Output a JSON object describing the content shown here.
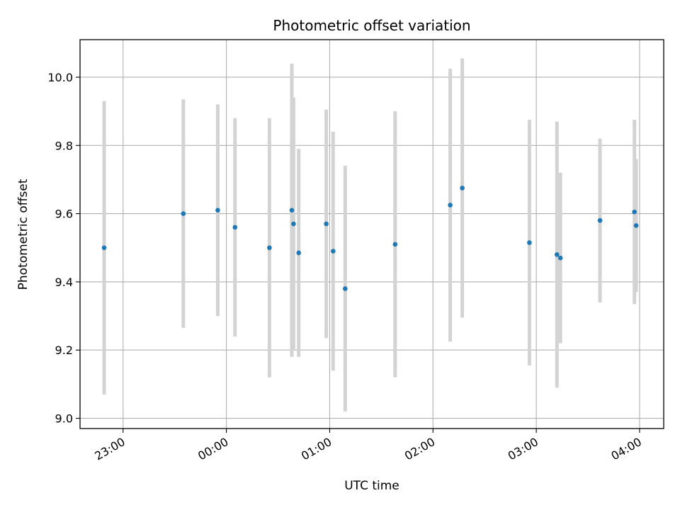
{
  "chart_data": {
    "type": "scatter",
    "title": "Photometric offset variation",
    "xlabel": "UTC time",
    "ylabel": "Photometric offset",
    "x_is_time": true,
    "xlim": [
      "22:35",
      "04:14"
    ],
    "ylim": [
      8.97,
      10.11
    ],
    "x_ticks": [
      "23:00",
      "00:00",
      "01:00",
      "02:00",
      "03:00",
      "04:00"
    ],
    "y_ticks": [
      9.0,
      9.2,
      9.4,
      9.6,
      9.8,
      10.0
    ],
    "y_tick_labels": [
      "9.0",
      "9.2",
      "9.4",
      "9.6",
      "9.8",
      "10.0"
    ],
    "grid": true,
    "colors": {
      "point": "#1f77b4",
      "errorbar": "#d3d3d3",
      "grid": "#b0b0b0"
    },
    "points": [
      {
        "x": "22:49",
        "y": 9.5,
        "err": 0.43
      },
      {
        "x": "23:35",
        "y": 9.6,
        "err": 0.335
      },
      {
        "x": "23:55",
        "y": 9.61,
        "err": 0.31
      },
      {
        "x": "00:05",
        "y": 9.56,
        "err": 0.32
      },
      {
        "x": "00:25",
        "y": 9.5,
        "err": 0.38
      },
      {
        "x": "00:38",
        "y": 9.61,
        "err": 0.43
      },
      {
        "x": "00:39",
        "y": 9.57,
        "err": 0.37
      },
      {
        "x": "00:42",
        "y": 9.485,
        "err": 0.305
      },
      {
        "x": "00:58",
        "y": 9.57,
        "err": 0.335
      },
      {
        "x": "01:02",
        "y": 9.49,
        "err": 0.35
      },
      {
        "x": "01:09",
        "y": 9.38,
        "err": 0.36
      },
      {
        "x": "01:38",
        "y": 9.51,
        "err": 0.39
      },
      {
        "x": "02:10",
        "y": 9.625,
        "err": 0.4
      },
      {
        "x": "02:17",
        "y": 9.675,
        "err": 0.38
      },
      {
        "x": "02:56",
        "y": 9.515,
        "err": 0.36
      },
      {
        "x": "03:12",
        "y": 9.48,
        "err": 0.39
      },
      {
        "x": "03:14",
        "y": 9.47,
        "err": 0.25
      },
      {
        "x": "03:37",
        "y": 9.58,
        "err": 0.24
      },
      {
        "x": "03:57",
        "y": 9.605,
        "err": 0.27
      },
      {
        "x": "03:58",
        "y": 9.565,
        "err": 0.195
      }
    ]
  }
}
